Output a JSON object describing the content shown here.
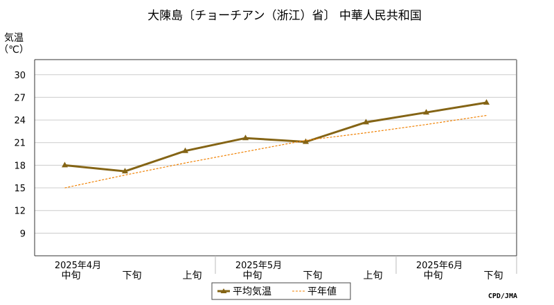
{
  "chart_data": {
    "type": "line",
    "title": "大陳島〔チョーチアン（浙江）省〕 中華人民共和国",
    "ylabel_line1": "気温",
    "ylabel_line2": "（℃）",
    "ylim": [
      6,
      32
    ],
    "yticks": [
      9,
      12,
      15,
      18,
      21,
      24,
      27,
      30
    ],
    "grid": true,
    "categories": [
      "中旬",
      "下旬",
      "上旬",
      "中旬",
      "下旬",
      "上旬",
      "中旬",
      "下旬"
    ],
    "months": [
      {
        "label": "2025年4月",
        "at": 0
      },
      {
        "label": "2025年5月",
        "at": 3
      },
      {
        "label": "2025年6月",
        "at": 6
      }
    ],
    "series": [
      {
        "name": "平均気温",
        "color": "#846415",
        "marker": "triangle",
        "values": [
          18.0,
          17.2,
          19.9,
          21.6,
          21.1,
          23.7,
          25.0,
          26.3
        ]
      },
      {
        "name": "平年値",
        "color": "#f08000",
        "style": "dashed",
        "values": [
          15.0,
          16.7,
          18.3,
          19.8,
          21.3,
          22.3,
          23.4,
          24.6
        ]
      }
    ],
    "legend": "bottom",
    "credit": "CPD/JMA"
  }
}
